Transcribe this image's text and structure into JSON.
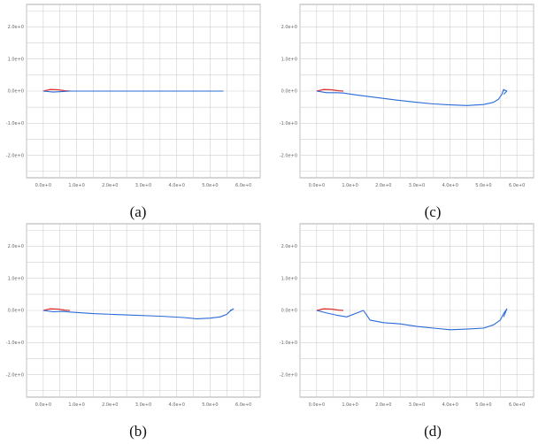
{
  "chart_data": [
    {
      "type": "line",
      "caption": "(a)",
      "x_ticks": [
        "0.0e+0",
        "1.0e+0",
        "2.0e+0",
        "3.0e+0",
        "4.0e+0",
        "5.0e+0",
        "6.0e+0"
      ],
      "y_ticks": [
        "2.0e+0",
        "1.0e+0",
        "0.0e+0",
        "-1.0e+0",
        "-2.0e+0"
      ],
      "xlim": [
        -0.5,
        6.5
      ],
      "ylim": [
        -2.7,
        2.7
      ],
      "grid": true,
      "series": [
        {
          "color": "#e03535",
          "x": [
            0.0,
            0.2,
            0.45,
            0.65,
            0.8
          ],
          "y": [
            0.0,
            0.05,
            0.04,
            0.01,
            0.0
          ]
        },
        {
          "color": "#2a6ad8",
          "x": [
            0.0,
            0.3,
            0.6,
            0.8,
            1.5,
            3.0,
            4.5,
            5.4
          ],
          "y": [
            0.0,
            -0.03,
            -0.01,
            0.0,
            0.0,
            0.0,
            0.0,
            0.0
          ]
        }
      ]
    },
    {
      "type": "line",
      "caption": "(b)",
      "x_ticks": [
        "0.0e+0",
        "1.0e+0",
        "2.0e+0",
        "3.0e+0",
        "4.0e+0",
        "5.0e+0",
        "6.0e+0"
      ],
      "y_ticks": [
        "2.0e+0",
        "1.0e+0",
        "0.0e+0",
        "-1.0e+0",
        "-2.0e+0"
      ],
      "xlim": [
        -0.5,
        6.5
      ],
      "ylim": [
        -2.7,
        2.7
      ],
      "grid": true,
      "series": [
        {
          "color": "#e03535",
          "x": [
            0.0,
            0.2,
            0.45,
            0.65,
            0.8
          ],
          "y": [
            0.0,
            0.05,
            0.04,
            0.01,
            0.0
          ]
        },
        {
          "color": "#2a6ad8",
          "x": [
            0.0,
            0.3,
            0.6,
            0.8,
            1.5,
            2.5,
            3.5,
            4.2,
            4.6,
            5.0,
            5.3,
            5.5,
            5.6,
            5.7,
            5.6
          ],
          "y": [
            0.0,
            -0.04,
            -0.03,
            -0.05,
            -0.1,
            -0.14,
            -0.18,
            -0.22,
            -0.26,
            -0.24,
            -0.2,
            -0.12,
            -0.02,
            0.05,
            0.0
          ]
        }
      ]
    },
    {
      "type": "line",
      "caption": "(c)",
      "x_ticks": [
        "0.0e+0",
        "1.0e+0",
        "2.0e+0",
        "3.0e+0",
        "4.0e+0",
        "5.0e+0",
        "6.0e+0"
      ],
      "y_ticks": [
        "2.0e+0",
        "1.0e+0",
        "0.0e+0",
        "-1.0e+0",
        "-2.0e+0"
      ],
      "xlim": [
        -0.5,
        6.5
      ],
      "ylim": [
        -2.7,
        2.7
      ],
      "grid": true,
      "series": [
        {
          "color": "#e03535",
          "x": [
            0.0,
            0.2,
            0.45,
            0.65,
            0.8
          ],
          "y": [
            0.0,
            0.05,
            0.04,
            0.01,
            0.0
          ]
        },
        {
          "color": "#2a6ad8",
          "x": [
            0.0,
            0.3,
            0.6,
            0.8,
            1.2,
            1.8,
            2.4,
            3.0,
            3.5,
            4.0,
            4.5,
            5.0,
            5.3,
            5.45,
            5.55,
            5.6,
            5.7,
            5.6
          ],
          "y": [
            0.0,
            -0.05,
            -0.05,
            -0.06,
            -0.12,
            -0.2,
            -0.28,
            -0.35,
            -0.4,
            -0.43,
            -0.45,
            -0.42,
            -0.35,
            -0.25,
            -0.1,
            0.05,
            0.0,
            -0.1
          ]
        }
      ]
    },
    {
      "type": "line",
      "caption": "(d)",
      "x_ticks": [
        "0.0e+0",
        "1.0e+0",
        "2.0e+0",
        "3.0e+0",
        "4.0e+0",
        "5.0e+0",
        "6.0e+0"
      ],
      "y_ticks": [
        "2.0e+0",
        "1.0e+0",
        "0.0e+0",
        "-1.0e+0",
        "-2.0e+0"
      ],
      "xlim": [
        -0.5,
        6.5
      ],
      "ylim": [
        -2.7,
        2.7
      ],
      "grid": true,
      "series": [
        {
          "color": "#e03535",
          "x": [
            0.0,
            0.2,
            0.45,
            0.65,
            0.8
          ],
          "y": [
            0.0,
            0.05,
            0.04,
            0.01,
            0.0
          ]
        },
        {
          "color": "#2a6ad8",
          "x": [
            0.0,
            0.3,
            0.6,
            0.9,
            1.2,
            1.4,
            1.6,
            2.0,
            2.5,
            3.0,
            3.5,
            4.0,
            4.5,
            5.0,
            5.3,
            5.5,
            5.6,
            5.7,
            5.6
          ],
          "y": [
            0.0,
            -0.08,
            -0.15,
            -0.2,
            -0.08,
            0.0,
            -0.3,
            -0.38,
            -0.42,
            -0.5,
            -0.55,
            -0.6,
            -0.58,
            -0.55,
            -0.45,
            -0.3,
            -0.1,
            0.05,
            -0.2
          ]
        }
      ]
    }
  ]
}
